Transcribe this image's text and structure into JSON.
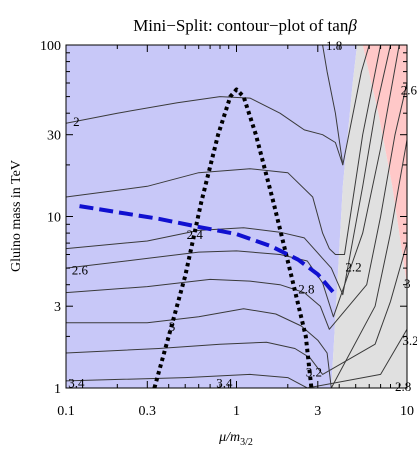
{
  "chart_data": {
    "type": "contour",
    "title": "Mini−Split: contour−plot of tan",
    "title_symbol": "β",
    "xlabel_main": "μ/m",
    "xlabel_sub": "3/2",
    "ylabel": "Gluino mass in TeV",
    "x_scale": "log",
    "y_scale": "log",
    "xlim": [
      0.1,
      10
    ],
    "ylim": [
      1,
      100
    ],
    "x_ticks": [
      {
        "value": 0.1,
        "label": "0.1"
      },
      {
        "value": 0.3,
        "label": "0.3"
      },
      {
        "value": 1,
        "label": "1"
      },
      {
        "value": 3,
        "label": "3"
      },
      {
        "value": 10,
        "label": "10"
      }
    ],
    "y_ticks": [
      {
        "value": 1,
        "label": "1"
      },
      {
        "value": 3,
        "label": "3"
      },
      {
        "value": 10,
        "label": "10"
      },
      {
        "value": 30,
        "label": "30"
      },
      {
        "value": 100,
        "label": "100"
      }
    ],
    "regions": [
      {
        "color": "#c8c8f8",
        "boundary": [
          [
            0.1,
            1
          ],
          [
            0.1,
            100
          ],
          [
            5.1,
            100
          ],
          [
            4.8,
            60
          ],
          [
            4.2,
            15
          ],
          [
            3.9,
            4
          ],
          [
            3.6,
            1
          ]
        ]
      },
      {
        "color": "#e0e0e0",
        "boundary": [
          [
            3.6,
            1
          ],
          [
            3.9,
            4
          ],
          [
            4.2,
            15
          ],
          [
            4.8,
            60
          ],
          [
            5.1,
            100
          ],
          [
            5.5,
            100
          ],
          [
            6.8,
            40
          ],
          [
            8.2,
            15
          ],
          [
            10,
            4
          ],
          [
            10,
            1
          ]
        ]
      },
      {
        "color": "#ffc8c8",
        "boundary": [
          [
            5.5,
            100
          ],
          [
            10,
            100
          ],
          [
            10,
            4
          ],
          [
            8.2,
            15
          ],
          [
            6.8,
            40
          ]
        ]
      }
    ],
    "contours": [
      {
        "level": "1.8",
        "points": [
          [
            3.2,
            100
          ],
          [
            3.4,
            70
          ],
          [
            3.8,
            40
          ],
          [
            4.2,
            20
          ]
        ]
      },
      {
        "level": "2",
        "points": [
          [
            0.1,
            35
          ],
          [
            0.2,
            40
          ],
          [
            0.45,
            46
          ],
          [
            0.8,
            50
          ],
          [
            1.2,
            49
          ],
          [
            1.8,
            40
          ],
          [
            2.5,
            32
          ],
          [
            3.2,
            30
          ],
          [
            3.8,
            27
          ],
          [
            4.2,
            20
          ],
          [
            5.4,
            70
          ],
          [
            6,
            100
          ]
        ]
      },
      {
        "level": "2.2",
        "points": [
          [
            0.1,
            13
          ],
          [
            0.3,
            15
          ],
          [
            0.6,
            18
          ],
          [
            1.2,
            19
          ],
          [
            2,
            18
          ],
          [
            2.8,
            13
          ],
          [
            3.2,
            8
          ],
          [
            3.5,
            6.5
          ],
          [
            3.8,
            6
          ],
          [
            4.3,
            6
          ],
          [
            5.5,
            30
          ],
          [
            7,
            100
          ]
        ]
      },
      {
        "level": "2.4",
        "points": [
          [
            0.1,
            6.5
          ],
          [
            0.3,
            7.2
          ],
          [
            0.6,
            8.3
          ],
          [
            1.1,
            8.6
          ],
          [
            1.8,
            8.1
          ],
          [
            2.5,
            7.5
          ],
          [
            3.2,
            5.7
          ],
          [
            3.6,
            5
          ],
          [
            4.2,
            3.5
          ],
          [
            5.5,
            15
          ],
          [
            6.5,
            40
          ],
          [
            8,
            100
          ]
        ]
      },
      {
        "level": "2.6",
        "points": [
          [
            0.1,
            5
          ],
          [
            0.3,
            5.7
          ],
          [
            0.6,
            6.2
          ],
          [
            1,
            6.3
          ],
          [
            1.8,
            6
          ],
          [
            2.6,
            5.5
          ],
          [
            3.2,
            4.1
          ],
          [
            3.7,
            2.6
          ],
          [
            5.5,
            8
          ],
          [
            7,
            25
          ],
          [
            9,
            100
          ]
        ]
      },
      {
        "level": "2.8",
        "points": [
          [
            0.1,
            3.6
          ],
          [
            0.3,
            3.9
          ],
          [
            0.7,
            4.3
          ],
          [
            1.2,
            4.2
          ],
          [
            1.8,
            4
          ],
          [
            2.5,
            3.6
          ],
          [
            3.1,
            3
          ],
          [
            3.5,
            2.2
          ],
          [
            5.8,
            4
          ],
          [
            7,
            10
          ],
          [
            8.5,
            30
          ],
          [
            10,
            60
          ]
        ]
      },
      {
        "level": "3",
        "points": [
          [
            0.1,
            2.4
          ],
          [
            0.3,
            2.4
          ],
          [
            0.6,
            2.6
          ],
          [
            1.1,
            2.9
          ],
          [
            1.7,
            2.7
          ],
          [
            2.4,
            2.3
          ],
          [
            3,
            1.9
          ],
          [
            3.4,
            1.6
          ],
          [
            3.6,
            1
          ],
          [
            6.5,
            3
          ],
          [
            8,
            8
          ],
          [
            10,
            28
          ]
        ]
      },
      {
        "level": "3.2",
        "points": [
          [
            0.1,
            1.6
          ],
          [
            0.35,
            1.7
          ],
          [
            0.8,
            1.8
          ],
          [
            1.5,
            1.85
          ],
          [
            2.2,
            1.7
          ],
          [
            2.7,
            1.5
          ],
          [
            3.2,
            1.2
          ],
          [
            6.5,
            1.8
          ],
          [
            8,
            3.2
          ],
          [
            10,
            7
          ]
        ]
      },
      {
        "level": "3.4",
        "points": [
          [
            0.1,
            1.1
          ],
          [
            0.5,
            1.15
          ],
          [
            1.2,
            1.2
          ],
          [
            2,
            1.15
          ],
          [
            2.6,
            1
          ],
          [
            7,
            1.2
          ],
          [
            10,
            2.2
          ]
        ]
      }
    ],
    "contour_labels": [
      {
        "text": "1.8",
        "x": 3.35,
        "y": 100
      },
      {
        "text": "2",
        "x": 0.11,
        "y": 36
      },
      {
        "text": "2.6",
        "x": 9.2,
        "y": 55
      },
      {
        "text": "2.4",
        "x": 0.51,
        "y": 7.9
      },
      {
        "text": "2.6",
        "x": 0.108,
        "y": 4.9
      },
      {
        "text": "2.2",
        "x": 4.35,
        "y": 5.1
      },
      {
        "text": "3",
        "x": 9.6,
        "y": 4.1
      },
      {
        "text": "2.8",
        "x": 2.3,
        "y": 3.8
      },
      {
        "text": "3",
        "x": 0.4,
        "y": 2.3
      },
      {
        "text": "3.2",
        "x": 9.4,
        "y": 1.9
      },
      {
        "text": "3.4",
        "x": 0.103,
        "y": 1.08
      },
      {
        "text": "3.4",
        "x": 0.76,
        "y": 1.08
      },
      {
        "text": "3.2",
        "x": 2.55,
        "y": 1.25
      },
      {
        "text": "2.8",
        "x": 8.5,
        "y": 1.03
      }
    ],
    "special_lines": [
      {
        "style": "dotted",
        "color": "#000000",
        "points": [
          [
            0.33,
            1
          ],
          [
            0.4,
            2
          ],
          [
            0.5,
            4.5
          ],
          [
            0.62,
            12
          ],
          [
            0.78,
            30
          ],
          [
            0.92,
            50
          ],
          [
            1,
            55
          ],
          [
            1.1,
            50
          ],
          [
            1.3,
            30
          ],
          [
            1.65,
            12
          ],
          [
            2.1,
            4.5
          ],
          [
            2.55,
            2
          ],
          [
            2.75,
            1
          ]
        ]
      },
      {
        "style": "dashed",
        "color": "#1010d0",
        "points": [
          [
            0.12,
            11.5
          ],
          [
            0.2,
            10.6
          ],
          [
            0.35,
            9.7
          ],
          [
            0.6,
            8.7
          ],
          [
            1,
            7.9
          ],
          [
            1.6,
            6.7
          ],
          [
            2.3,
            5.6
          ],
          [
            3,
            4.6
          ],
          [
            3.8,
            3.5
          ]
        ]
      }
    ]
  }
}
